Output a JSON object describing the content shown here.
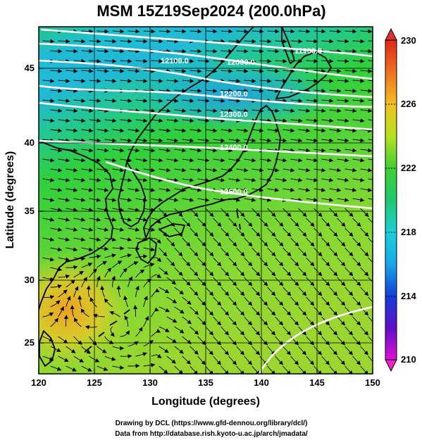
{
  "title": "MSM 15Z19Sep2024 (200.0hPa)",
  "xlabel": "Longitude (degrees)",
  "ylabel": "Latitude  (degrees)",
  "credits": [
    "Drawing by DCL (https://www.gfd-dennou.org/library/dcl/)",
    "Data from http://database.rish.kyoto-u.ac.jp/arch/jmadata/"
  ],
  "map_data": {
    "lon_range": [
      120,
      150
    ],
    "lat_range": [
      22.4,
      47.6
    ],
    "x_ticks": [
      "120",
      "125",
      "130",
      "135",
      "140",
      "145",
      "150"
    ],
    "y_ticks": [
      "25",
      "30",
      "35",
      "40",
      "45"
    ],
    "grid": true,
    "shaded_field": "temperature (K)",
    "colorbar": {
      "min": 210,
      "max": 230,
      "labels": [
        "230",
        "226",
        "222",
        "218",
        "214",
        "210"
      ],
      "colors": {
        "210": "#e010d8",
        "214": "#1030c8",
        "218": "#18c8e0",
        "222": "#20c838",
        "226": "#e8e020",
        "230": "#e02818"
      }
    },
    "contour_labels": [
      "11900.0",
      "12000.0",
      "12100.0",
      "12200.0",
      "12300.0",
      "12400.0",
      "12500.0"
    ],
    "vectors": "streamlines of wind"
  },
  "colors": {
    "coastline": "#000000",
    "contour": "#ffffff",
    "streamline": "#000000"
  }
}
